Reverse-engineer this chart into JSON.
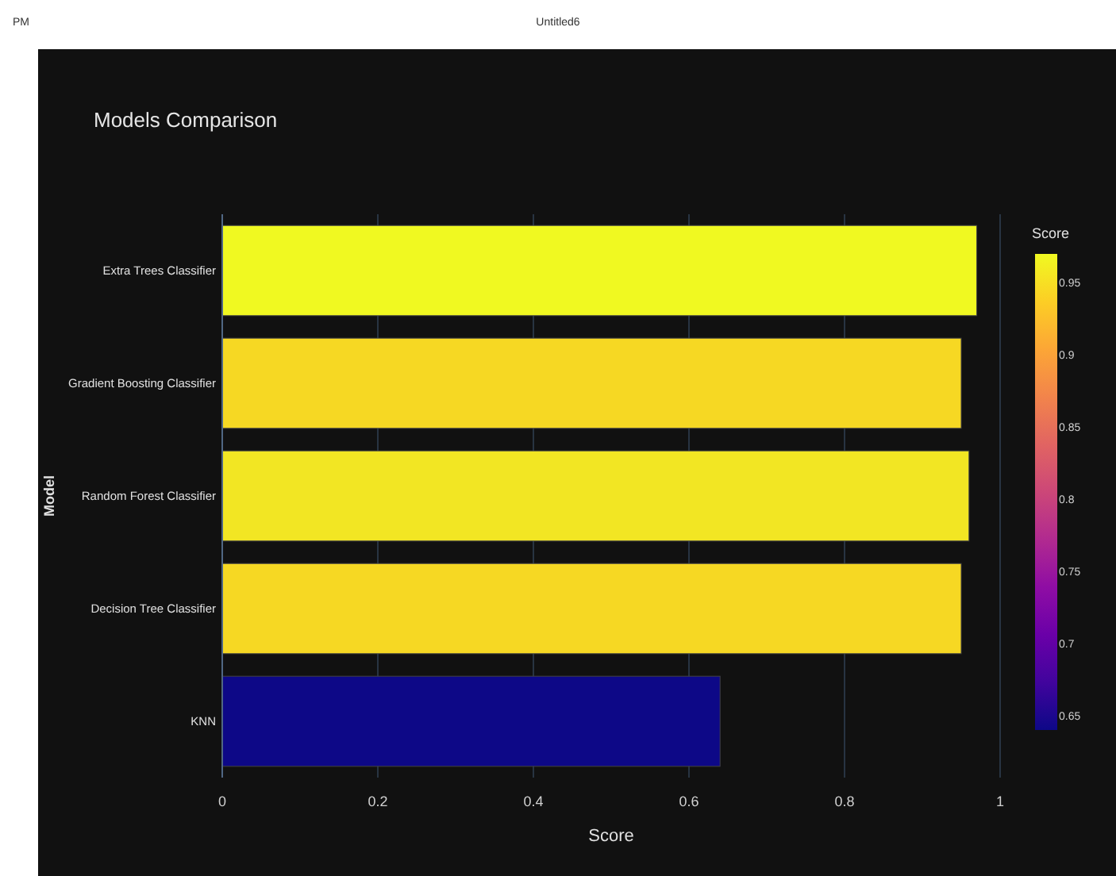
{
  "chart_data": {
    "type": "bar",
    "orientation": "horizontal",
    "title": "Models Comparison",
    "xlabel": "Score",
    "ylabel": "Model",
    "clabel": "Score",
    "annotations": [
      "PM",
      "Untitled6"
    ],
    "categories": [
      "Extra Trees Classifier",
      "Gradient Boosting Classifier",
      "Random Forest Classifier",
      "Decision Tree Classifier",
      "KNN"
    ],
    "values": [
      0.97,
      0.95,
      0.96,
      0.95,
      0.64
    ],
    "colors": [
      "#f0f921",
      "#f6d823",
      "#f2e623",
      "#f6d823",
      "#0d0887"
    ],
    "xlim": [
      0,
      1
    ],
    "xticks": [
      0,
      0.2,
      0.4,
      0.6,
      0.8,
      1
    ],
    "clim": [
      0.64,
      0.97
    ],
    "cticks": [
      0.65,
      0.7,
      0.75,
      0.8,
      0.85,
      0.9,
      0.95
    ],
    "grid": "x"
  }
}
